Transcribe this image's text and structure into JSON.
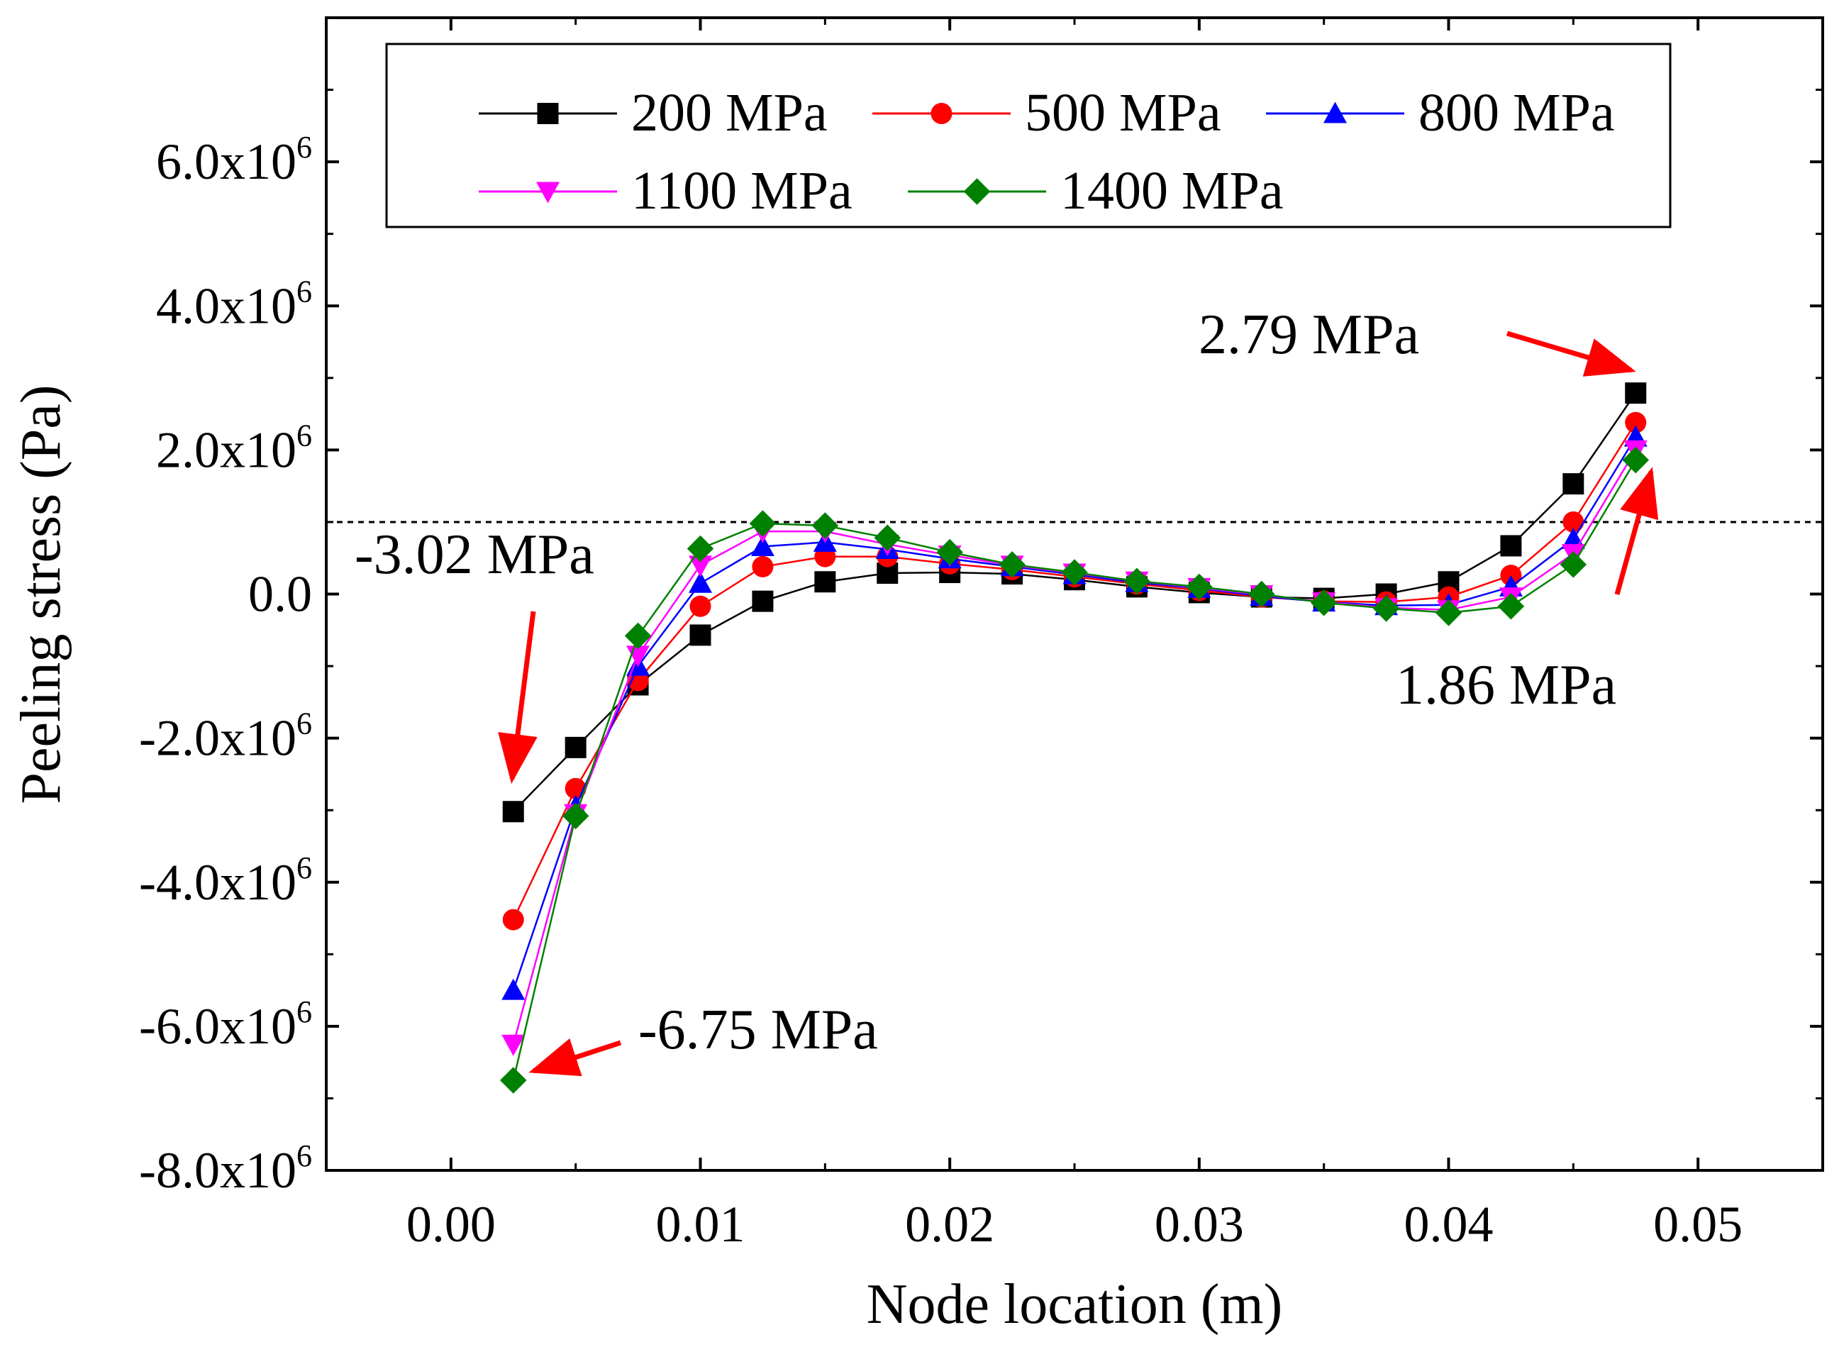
{
  "chart_data": {
    "type": "line",
    "title": "",
    "xlabel": "Node location (m)",
    "ylabel": "Peeling stress (Pa)",
    "xlim": [
      -0.005,
      0.055
    ],
    "ylim": [
      -8000000,
      8000000
    ],
    "x_ticks": [
      0.0,
      0.01,
      0.02,
      0.03,
      0.04,
      0.05
    ],
    "x_tick_labels": [
      "0.00",
      "0.01",
      "0.02",
      "0.03",
      "0.04",
      "0.05"
    ],
    "y_ticks": [
      -8000000,
      -6000000,
      -4000000,
      -2000000,
      0,
      2000000,
      4000000,
      6000000
    ],
    "y_tick_labels": [
      {
        "base": "-8.0x10",
        "exp": "6"
      },
      {
        "base": "-6.0x10",
        "exp": "6"
      },
      {
        "base": "-4.0x10",
        "exp": "6"
      },
      {
        "base": "-2.0x10",
        "exp": "6"
      },
      {
        "base": "0.0",
        "exp": ""
      },
      {
        "base": "2.0x10",
        "exp": "6"
      },
      {
        "base": "4.0x10",
        "exp": "6"
      },
      {
        "base": "6.0x10",
        "exp": "6"
      }
    ],
    "reference_line_y": 1000000,
    "legend_position": "top",
    "x": [
      0.0025,
      0.005,
      0.0075,
      0.01,
      0.0125,
      0.015,
      0.0175,
      0.02,
      0.0225,
      0.025,
      0.0275,
      0.03,
      0.0325,
      0.035,
      0.0375,
      0.04,
      0.0425,
      0.045,
      0.0475
    ],
    "series": [
      {
        "name": "200 MPa",
        "color": "#000000",
        "marker": "square",
        "values": [
          -3020000,
          -2130000,
          -1260000,
          -570000,
          -100000,
          170000,
          290000,
          300000,
          280000,
          200000,
          100000,
          20000,
          -40000,
          -60000,
          0,
          170000,
          670000,
          1530000,
          2790000
        ]
      },
      {
        "name": "500 MPa",
        "color": "#ff0000",
        "marker": "circle",
        "values": [
          -4520000,
          -2700000,
          -1200000,
          -170000,
          380000,
          520000,
          520000,
          420000,
          340000,
          240000,
          140000,
          50000,
          -40000,
          -100000,
          -110000,
          -40000,
          260000,
          1000000,
          2380000
        ]
      },
      {
        "name": "800 MPa",
        "color": "#0000ff",
        "marker": "triangle-up",
        "values": [
          -5500000,
          -2950000,
          -1000000,
          150000,
          660000,
          720000,
          620000,
          490000,
          380000,
          270000,
          160000,
          80000,
          -30000,
          -110000,
          -160000,
          -150000,
          100000,
          760000,
          2180000
        ]
      },
      {
        "name": "1100 MPa",
        "color": "#ff00ff",
        "marker": "triangle-down",
        "values": [
          -6250000,
          -3050000,
          -850000,
          400000,
          870000,
          870000,
          690000,
          540000,
          400000,
          290000,
          180000,
          90000,
          -10000,
          -110000,
          -190000,
          -220000,
          -40000,
          560000,
          2000000
        ]
      },
      {
        "name": "1400 MPa",
        "color": "#008000",
        "marker": "diamond",
        "values": [
          -6750000,
          -3080000,
          -580000,
          630000,
          980000,
          950000,
          780000,
          580000,
          410000,
          300000,
          180000,
          100000,
          0,
          -120000,
          -200000,
          -260000,
          -170000,
          410000,
          1860000
        ]
      }
    ],
    "annotations": [
      {
        "text": "2.79 MPa",
        "target": [
          0.0475,
          2790000
        ]
      },
      {
        "text": "-3.02 MPa",
        "target": [
          0.0025,
          -3020000
        ]
      },
      {
        "text": "-6.75 MPa",
        "target": [
          0.0025,
          -6750000
        ]
      },
      {
        "text": "1.86 MPa",
        "target": [
          0.0475,
          1860000
        ]
      }
    ]
  }
}
